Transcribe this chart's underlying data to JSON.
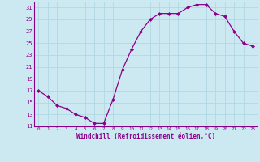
{
  "x": [
    0,
    1,
    2,
    3,
    4,
    5,
    6,
    7,
    8,
    9,
    10,
    11,
    12,
    13,
    14,
    15,
    16,
    17,
    18,
    19,
    20,
    21,
    22,
    23
  ],
  "y": [
    17,
    16,
    14.5,
    14,
    13,
    12.5,
    11.5,
    11.5,
    15.5,
    20.5,
    24,
    27,
    29,
    30,
    30,
    30,
    31,
    31.5,
    31.5,
    30,
    29.5,
    27,
    25,
    24.5
  ],
  "line_color": "#8b008b",
  "marker": "D",
  "marker_size": 2.0,
  "bg_color": "#cce8f0",
  "grid_color": "#b0d8e4",
  "xlabel": "Windchill (Refroidissement éolien,°C)",
  "xlabel_color": "#8b008b",
  "tick_color": "#8b008b",
  "ylim": [
    11,
    32
  ],
  "yticks": [
    11,
    13,
    15,
    17,
    19,
    21,
    23,
    25,
    27,
    29,
    31
  ],
  "xlim": [
    -0.5,
    23.5
  ],
  "spine_color": "#8b008b"
}
